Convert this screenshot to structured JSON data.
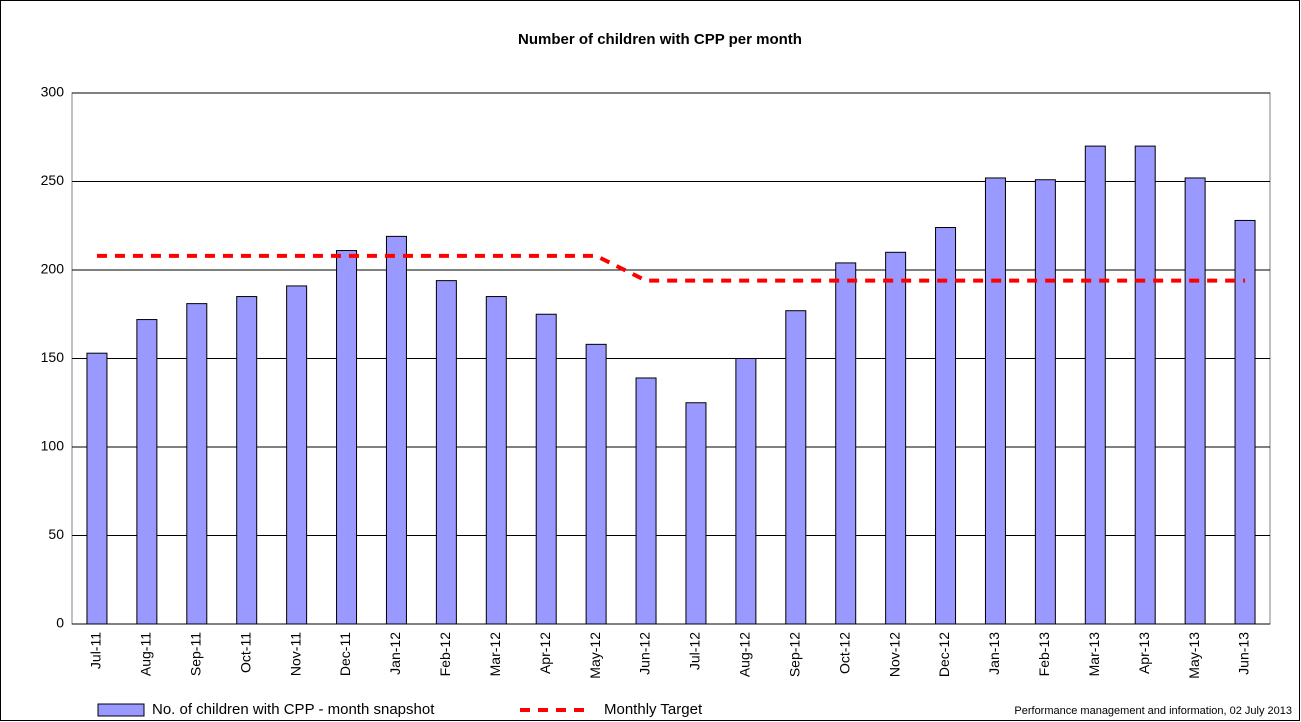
{
  "chart_data": {
    "type": "bar",
    "title": "Number of children with CPP per month",
    "categories": [
      "Jul-11",
      "Aug-11",
      "Sep-11",
      "Oct-11",
      "Nov-11",
      "Dec-11",
      "Jan-12",
      "Feb-12",
      "Mar-12",
      "Apr-12",
      "May-12",
      "Jun-12",
      "Jul-12",
      "Aug-12",
      "Sep-12",
      "Oct-12",
      "Nov-12",
      "Dec-12",
      "Jan-13",
      "Feb-13",
      "Mar-13",
      "Apr-13",
      "May-13",
      "Jun-13"
    ],
    "series": [
      {
        "name": "No. of children with CPP - month snapshot",
        "type": "bar",
        "color": "#9999ff",
        "values": [
          153,
          172,
          181,
          185,
          191,
          211,
          219,
          194,
          185,
          175,
          158,
          139,
          125,
          150,
          177,
          204,
          210,
          224,
          252,
          251,
          270,
          270,
          252,
          228
        ]
      },
      {
        "name": "Monthly Target",
        "type": "line",
        "color": "#ff0000",
        "values": [
          208,
          208,
          208,
          208,
          208,
          208,
          208,
          208,
          208,
          208,
          208,
          194,
          194,
          194,
          194,
          194,
          194,
          194,
          194,
          194,
          194,
          194,
          194,
          194
        ]
      }
    ],
    "ylim": [
      0,
      300
    ],
    "yticks": [
      0,
      50,
      100,
      150,
      200,
      250,
      300
    ],
    "grid": true,
    "annotation": "Performance management and information, 02 July 2013"
  }
}
